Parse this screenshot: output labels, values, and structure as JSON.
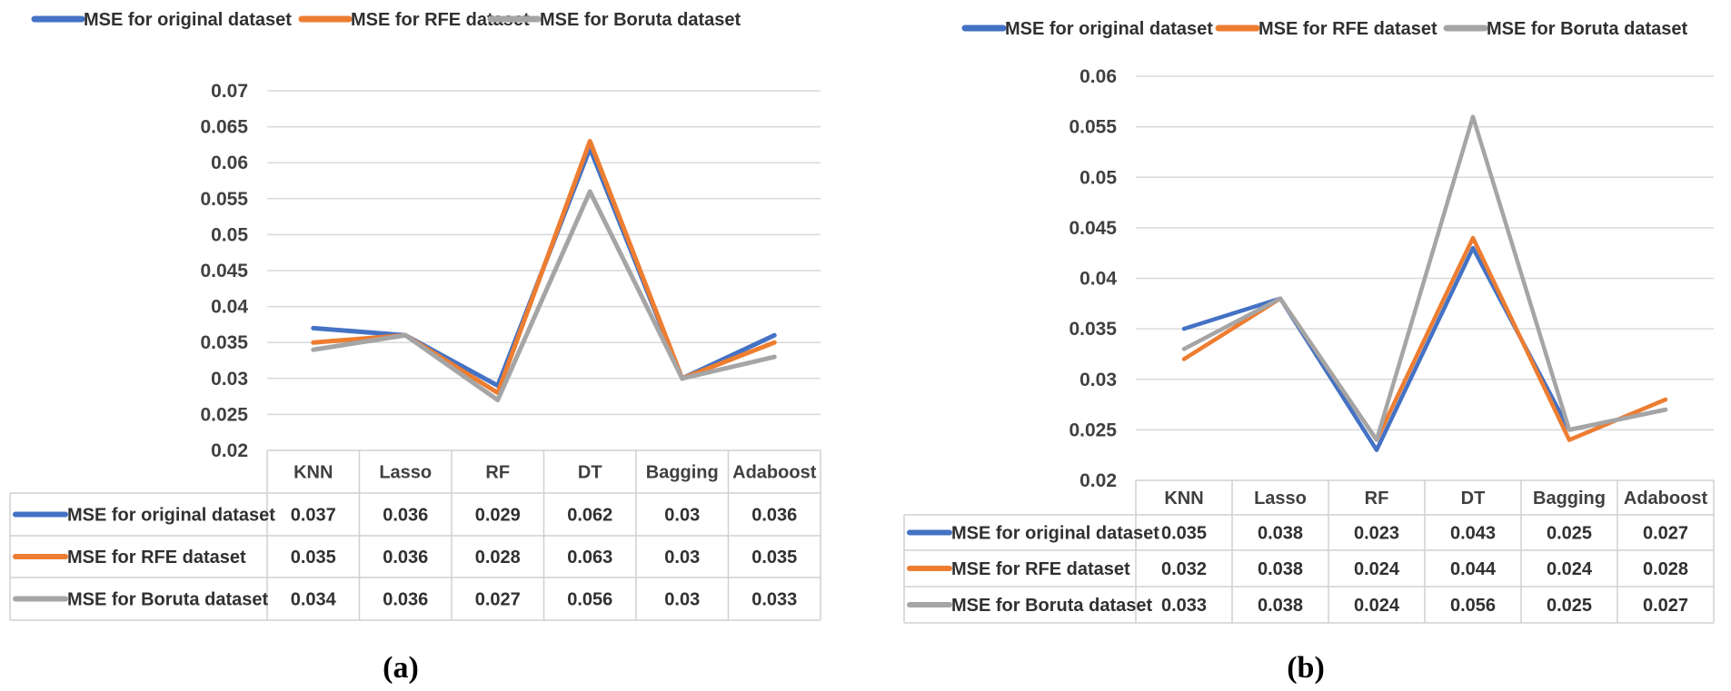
{
  "chart_data": [
    {
      "type": "line",
      "caption": "(a)",
      "categories": [
        "KNN",
        "Lasso",
        "RF",
        "DT",
        "Bagging",
        "Adaboost"
      ],
      "ylim": [
        0.02,
        0.07
      ],
      "yticks": [
        "0.07",
        "0.065",
        "0.06",
        "0.055",
        "0.05",
        "0.045",
        "0.04",
        "0.035",
        "0.03",
        "0.025",
        "0.02"
      ],
      "legend_position": "top",
      "series": [
        {
          "name": "MSE for original dataset",
          "color": "#4472c4",
          "values": [
            0.037,
            0.036,
            0.029,
            0.062,
            0.03,
            0.036
          ],
          "labels": [
            "0.037",
            "0.036",
            "0.029",
            "0.062",
            "0.03",
            "0.036"
          ]
        },
        {
          "name": "MSE for RFE dataset",
          "color": "#ed7d31",
          "values": [
            0.035,
            0.036,
            0.028,
            0.063,
            0.03,
            0.035
          ],
          "labels": [
            "0.035",
            "0.036",
            "0.028",
            "0.063",
            "0.03",
            "0.035"
          ]
        },
        {
          "name": "MSE for Boruta dataset",
          "color": "#a5a5a5",
          "values": [
            0.034,
            0.036,
            0.027,
            0.056,
            0.03,
            0.033
          ],
          "labels": [
            "0.034",
            "0.036",
            "0.027",
            "0.056",
            "0.03",
            "0.033"
          ]
        }
      ]
    },
    {
      "type": "line",
      "caption": "(b)",
      "categories": [
        "KNN",
        "Lasso",
        "RF",
        "DT",
        "Bagging",
        "Adaboost"
      ],
      "ylim": [
        0.02,
        0.06
      ],
      "yticks": [
        "0.06",
        "0.055",
        "0.05",
        "0.045",
        "0.04",
        "0.035",
        "0.03",
        "0.025",
        "0.02"
      ],
      "legend_position": "top",
      "series": [
        {
          "name": "MSE for original dataset",
          "color": "#4472c4",
          "values": [
            0.035,
            0.038,
            0.023,
            0.043,
            0.025,
            0.027
          ],
          "labels": [
            "0.035",
            "0.038",
            "0.023",
            "0.043",
            "0.025",
            "0.027"
          ]
        },
        {
          "name": "MSE for RFE dataset",
          "color": "#ed7d31",
          "values": [
            0.032,
            0.038,
            0.024,
            0.044,
            0.024,
            0.028
          ],
          "labels": [
            "0.032",
            "0.038",
            "0.024",
            "0.044",
            "0.024",
            "0.028"
          ]
        },
        {
          "name": "MSE for Boruta dataset",
          "color": "#a5a5a5",
          "values": [
            0.033,
            0.038,
            0.024,
            0.056,
            0.025,
            0.027
          ],
          "labels": [
            "0.033",
            "0.038",
            "0.024",
            "0.056",
            "0.025",
            "0.027"
          ]
        }
      ]
    }
  ]
}
